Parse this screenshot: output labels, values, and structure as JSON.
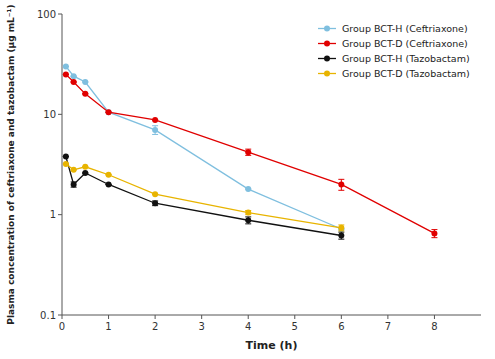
{
  "chart_data": {
    "type": "line",
    "xlabel": "Time (h)",
    "ylabel": "Plasma concentration of ceftriaxone and tazobactam (μg mL⁻¹)",
    "xlim": [
      0,
      9
    ],
    "ylim": [
      0.1,
      100
    ],
    "xticks": [
      0,
      1,
      2,
      3,
      4,
      5,
      6,
      7,
      8
    ],
    "yticks": [
      0.1,
      1,
      10,
      100
    ],
    "log": "y",
    "grid": false,
    "legend": "upper right",
    "series": [
      {
        "name": "Group BCT-H (Ceftriaxone)",
        "color": "#7fbfdf",
        "marker": "o",
        "x": [
          0.083,
          0.25,
          0.5,
          1.0,
          2.0,
          4.0,
          6.0
        ],
        "values": [
          30.0,
          24.0,
          21.0,
          10.5,
          7.0,
          1.8,
          0.72
        ],
        "yerr": [
          0.0,
          0.0,
          0.0,
          0.0,
          0.7,
          0.0,
          0.0
        ]
      },
      {
        "name": "Group BCT-D (Ceftriaxone)",
        "color": "#e00000",
        "marker": "o",
        "x": [
          0.083,
          0.25,
          0.5,
          1.0,
          2.0,
          4.0,
          6.0,
          8.0
        ],
        "values": [
          25.0,
          21.0,
          16.0,
          10.5,
          8.8,
          4.2,
          2.0,
          0.65
        ],
        "yerr": [
          0.0,
          0.0,
          0.0,
          0.0,
          0.0,
          0.3,
          0.25,
          0.06
        ]
      },
      {
        "name": "Group BCT-H (Tazobactam)",
        "color": "#111111",
        "marker": "o",
        "x": [
          0.083,
          0.25,
          0.5,
          1.0,
          2.0,
          4.0,
          6.0
        ],
        "values": [
          3.8,
          2.0,
          2.6,
          2.0,
          1.3,
          0.88,
          0.62
        ],
        "yerr": [
          0.0,
          0.12,
          0.0,
          0.0,
          0.07,
          0.07,
          0.05
        ]
      },
      {
        "name": "Group BCT-D (Tazobactam)",
        "color": "#e8b400",
        "marker": "o",
        "x": [
          0.083,
          0.25,
          0.5,
          1.0,
          2.0,
          4.0,
          6.0
        ],
        "values": [
          3.2,
          2.8,
          3.0,
          2.5,
          1.6,
          1.05,
          0.74
        ],
        "yerr": [
          0.0,
          0.0,
          0.0,
          0.0,
          0.0,
          0.05,
          0.05
        ]
      }
    ]
  }
}
